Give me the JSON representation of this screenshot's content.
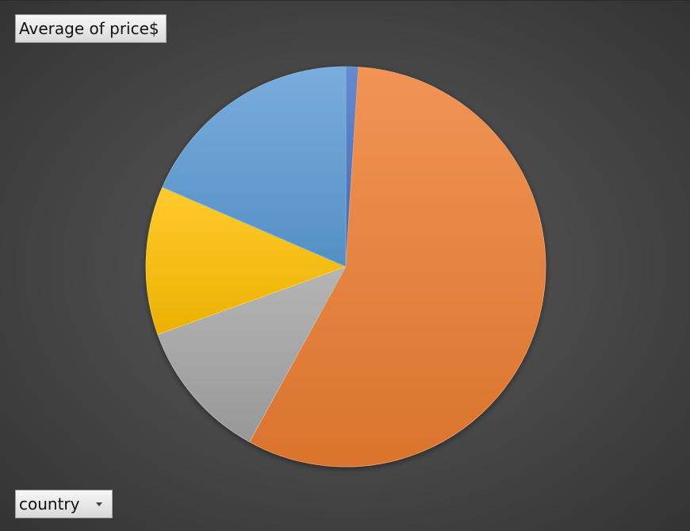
{
  "value_field": {
    "label": "Average of price$"
  },
  "axis_field": {
    "label": "country",
    "icon": "chevron-down-icon"
  },
  "chart_data": {
    "type": "pie",
    "title": "",
    "value_field": "Average of price$",
    "category_field": "country",
    "legend": "none",
    "categories": [
      "",
      "",
      "",
      "",
      ""
    ],
    "values": [
      1.0,
      57.0,
      11.5,
      12.0,
      18.5
    ],
    "colors": [
      "#4472c4",
      "#ed7d31",
      "#a5a5a5",
      "#ffc000",
      "#5b9bd5"
    ]
  }
}
